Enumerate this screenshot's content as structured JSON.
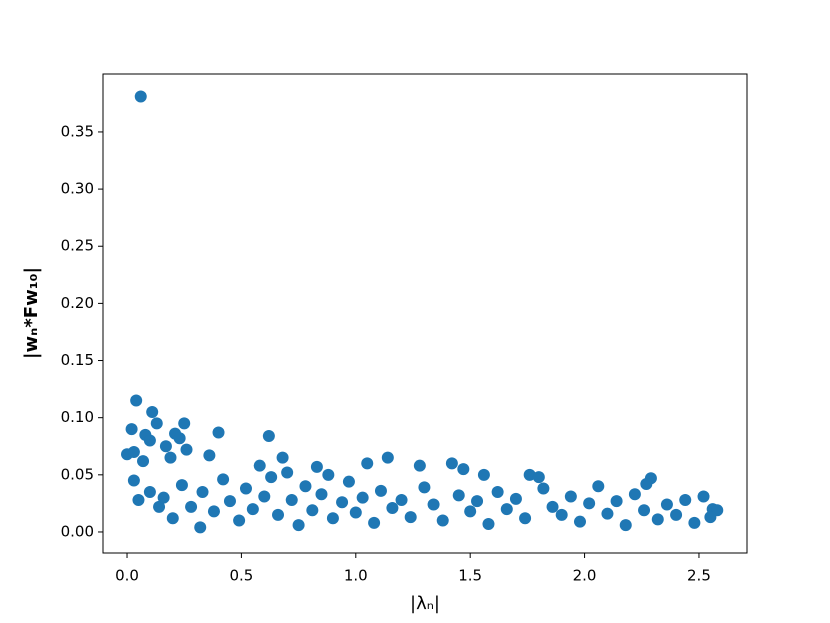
{
  "chart_data": {
    "type": "scatter",
    "x_label": "|λₙ|",
    "y_label": "|wₙ*Fw₁₀|",
    "color": "#1f77b4",
    "xlim": [
      -0.105,
      2.71
    ],
    "ylim": [
      -0.0184,
      0.4007
    ],
    "xticks": [
      {
        "value": 0,
        "label": "0.0"
      },
      0.5,
      {
        "value": 1,
        "label": "1.0"
      },
      1.5,
      {
        "value": 2,
        "label": "2.0"
      },
      2.5
    ],
    "yticks": [
      {
        "value": 0,
        "label": "0.00"
      },
      0.05,
      {
        "value": 0.1,
        "label": "0.10"
      },
      0.15,
      {
        "value": 0.2,
        "label": "0.20"
      },
      0.25,
      {
        "value": 0.3,
        "label": "0.30"
      },
      0.35
    ],
    "x": [
      0.06,
      0.04,
      0.02,
      0.11,
      0.08,
      0.13,
      0.1,
      0.0,
      0.03,
      0.07,
      0.19,
      0.21,
      0.23,
      0.25,
      0.26,
      0.4,
      0.36,
      0.62,
      0.68,
      0.58,
      0.7,
      0.83,
      0.88,
      1.05,
      1.14,
      1.28,
      1.42,
      1.47,
      1.56,
      1.76,
      1.8,
      2.29,
      2.27,
      2.56,
      2.58,
      0.03,
      0.05,
      0.1,
      0.14,
      0.17,
      0.16,
      0.2,
      0.24,
      0.28,
      0.32,
      0.33,
      0.38,
      0.42,
      0.45,
      0.49,
      0.52,
      0.55,
      0.6,
      0.63,
      0.66,
      0.72,
      0.75,
      0.78,
      0.81,
      0.85,
      0.9,
      0.94,
      0.97,
      1.0,
      1.03,
      1.08,
      1.11,
      1.16,
      1.2,
      1.24,
      1.3,
      1.34,
      1.38,
      1.45,
      1.5,
      1.53,
      1.58,
      1.62,
      1.66,
      1.7,
      1.74,
      1.82,
      1.86,
      1.9,
      1.94,
      1.98,
      2.02,
      2.06,
      2.1,
      2.14,
      2.18,
      2.22,
      2.26,
      2.32,
      2.36,
      2.4,
      2.44,
      2.48,
      2.52,
      2.55
    ],
    "values": [
      0.381,
      0.115,
      0.09,
      0.105,
      0.085,
      0.095,
      0.08,
      0.068,
      0.07,
      0.062,
      0.065,
      0.086,
      0.082,
      0.095,
      0.072,
      0.087,
      0.067,
      0.084,
      0.065,
      0.058,
      0.052,
      0.057,
      0.05,
      0.06,
      0.065,
      0.058,
      0.06,
      0.055,
      0.05,
      0.05,
      0.048,
      0.047,
      0.042,
      0.02,
      0.019,
      0.045,
      0.028,
      0.035,
      0.022,
      0.075,
      0.03,
      0.012,
      0.041,
      0.022,
      0.004,
      0.035,
      0.018,
      0.046,
      0.027,
      0.01,
      0.038,
      0.02,
      0.031,
      0.048,
      0.015,
      0.028,
      0.006,
      0.04,
      0.019,
      0.033,
      0.012,
      0.026,
      0.044,
      0.017,
      0.03,
      0.008,
      0.036,
      0.021,
      0.028,
      0.013,
      0.039,
      0.024,
      0.01,
      0.032,
      0.018,
      0.027,
      0.007,
      0.035,
      0.02,
      0.029,
      0.012,
      0.038,
      0.022,
      0.015,
      0.031,
      0.009,
      0.025,
      0.04,
      0.016,
      0.027,
      0.006,
      0.033,
      0.019,
      0.011,
      0.024,
      0.015,
      0.028,
      0.008,
      0.031,
      0.013
    ]
  }
}
